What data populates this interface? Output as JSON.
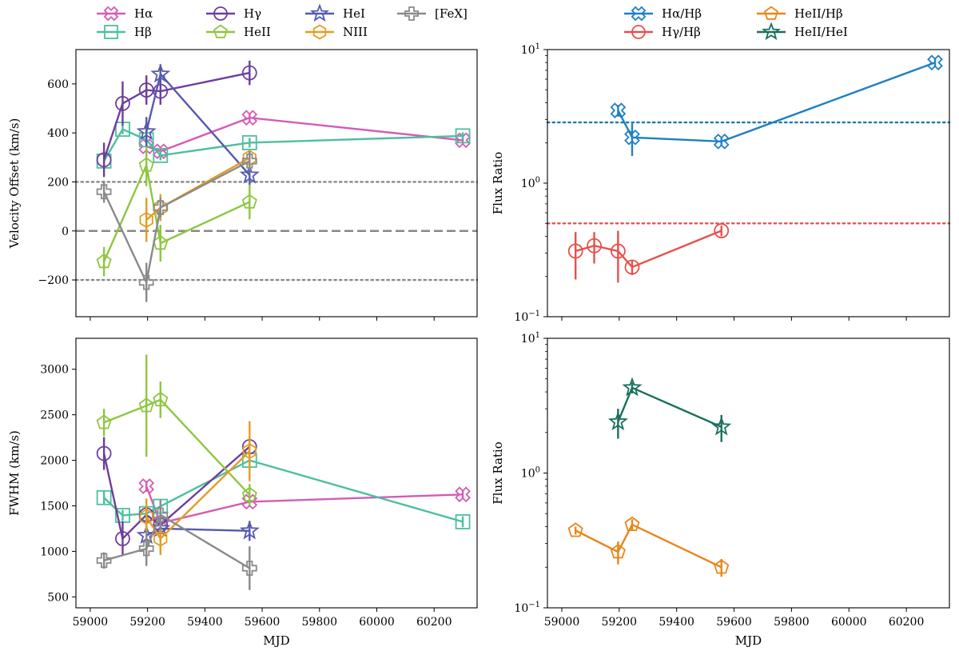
{
  "figure": {
    "x_label": "MJD"
  },
  "chart_data": [
    {
      "id": "velocity",
      "type": "line",
      "ylabel": "Velocity Offset (km/s)",
      "xlim": [
        58950,
        60350
      ],
      "ylim": [
        -350,
        740
      ],
      "yscale": "linear",
      "xticks": [
        59000,
        59200,
        59400,
        59600,
        59800,
        60000,
        60200
      ],
      "yticks": [
        -200,
        0,
        200,
        400,
        600
      ],
      "ytick_labels": [
        "−200",
        "0",
        "200",
        "400",
        "600"
      ],
      "hlines": [
        {
          "y": 200,
          "style": "dotted",
          "color": "#888888"
        },
        {
          "y": 0,
          "style": "dashed",
          "color": "#888888"
        },
        {
          "y": -200,
          "style": "dotted",
          "color": "#888888"
        }
      ],
      "legend": {
        "placement": "above",
        "columns": 4,
        "order": [
          "Hα",
          "Hβ",
          "Hγ",
          "HeII",
          "HeI",
          "NIII",
          "[FeX]"
        ]
      },
      "series": [
        {
          "name": "Hα",
          "color": "#d45bb8",
          "marker": "x-filled",
          "points": [
            [
              59196,
              345,
              20
            ],
            [
              59245,
              325,
              15
            ],
            [
              59556,
              462,
              20
            ],
            [
              60300,
              370,
              15
            ]
          ]
        },
        {
          "name": "Hβ",
          "color": "#4dbf9f",
          "marker": "square",
          "points": [
            [
              59048,
              285,
              25
            ],
            [
              59113,
              415,
              20
            ],
            [
              59196,
              372,
              20
            ],
            [
              59245,
              308,
              20
            ],
            [
              59556,
              360,
              20
            ],
            [
              60300,
              388,
              15
            ]
          ]
        },
        {
          "name": "Hγ",
          "color": "#6e3d9e",
          "marker": "circle",
          "points": [
            [
              59048,
              290,
              70
            ],
            [
              59113,
              520,
              90
            ],
            [
              59196,
              575,
              60
            ],
            [
              59245,
              570,
              55
            ],
            [
              59556,
              645,
              50
            ]
          ]
        },
        {
          "name": "HeII",
          "color": "#8ec641",
          "marker": "pentagon",
          "points": [
            [
              59048,
              -125,
              60
            ],
            [
              59196,
              268,
              85
            ],
            [
              59245,
              -50,
              75
            ],
            [
              59556,
              118,
              70
            ]
          ]
        },
        {
          "name": "HeI",
          "color": "#5559b0",
          "marker": "star",
          "points": [
            [
              59196,
              405,
              60
            ],
            [
              59245,
              640,
              40
            ],
            [
              59556,
              228,
              40
            ]
          ]
        },
        {
          "name": "NIII",
          "color": "#e69c1f",
          "marker": "hexagon",
          "points": [
            [
              59196,
              45,
              90
            ],
            [
              59245,
              95,
              55
            ],
            [
              59556,
              298,
              30
            ]
          ]
        },
        {
          "name": "[FeX]",
          "color": "#8a8a8a",
          "marker": "plus",
          "points": [
            [
              59048,
              160,
              45
            ],
            [
              59196,
              -210,
              80
            ],
            [
              59245,
              95,
              40
            ],
            [
              59556,
              285,
              40
            ]
          ]
        }
      ]
    },
    {
      "id": "fwhm",
      "type": "line",
      "ylabel": "FWHM (km/s)",
      "xlim": [
        58950,
        60350
      ],
      "ylim": [
        380,
        3340
      ],
      "yscale": "linear",
      "xticks": [
        59000,
        59200,
        59400,
        59600,
        59800,
        60000,
        60200
      ],
      "xtick_labels": [
        "59000",
        "59200",
        "59400",
        "59600",
        "59800",
        "60000",
        "60200"
      ],
      "yticks": [
        500,
        1000,
        1500,
        2000,
        2500,
        3000
      ],
      "ytick_labels": [
        "500",
        "1000",
        "1500",
        "2000",
        "2500",
        "3000"
      ],
      "series": [
        {
          "name": "Hα",
          "color": "#d45bb8",
          "marker": "x-filled",
          "points": [
            [
              59196,
              1715,
              60
            ],
            [
              59245,
              1310,
              60
            ],
            [
              59556,
              1545,
              60
            ],
            [
              60300,
              1625,
              50
            ]
          ]
        },
        {
          "name": "Hβ",
          "color": "#4dbf9f",
          "marker": "square",
          "points": [
            [
              59048,
              1590,
              80
            ],
            [
              59113,
              1395,
              60
            ],
            [
              59196,
              1415,
              60
            ],
            [
              59245,
              1495,
              60
            ],
            [
              59556,
              2000,
              120
            ],
            [
              60300,
              1325,
              60
            ]
          ]
        },
        {
          "name": "Hγ",
          "color": "#6e3d9e",
          "marker": "circle",
          "points": [
            [
              59048,
              2075,
              180
            ],
            [
              59113,
              1140,
              190
            ],
            [
              59196,
              1400,
              100
            ],
            [
              59245,
              1290,
              120
            ],
            [
              59556,
              2150,
              110
            ]
          ]
        },
        {
          "name": "HeII",
          "color": "#8ec641",
          "marker": "pentagon",
          "points": [
            [
              59048,
              2415,
              150
            ],
            [
              59196,
              2600,
              560
            ],
            [
              59245,
              2665,
              200
            ],
            [
              59556,
              1620,
              120
            ]
          ]
        },
        {
          "name": "HeI",
          "color": "#5559b0",
          "marker": "star",
          "points": [
            [
              59196,
              1175,
              150
            ],
            [
              59245,
              1250,
              150
            ],
            [
              59556,
              1225,
              110
            ]
          ]
        },
        {
          "name": "NIII",
          "color": "#e69c1f",
          "marker": "hexagon",
          "points": [
            [
              59196,
              1380,
              200
            ],
            [
              59245,
              1140,
              180
            ],
            [
              59556,
              2100,
              330
            ]
          ]
        },
        {
          "name": "[FeX]",
          "color": "#8a8a8a",
          "marker": "plus",
          "points": [
            [
              59048,
              900,
              90
            ],
            [
              59196,
              1030,
              190
            ],
            [
              59245,
              1400,
              170
            ],
            [
              59556,
              815,
              240
            ]
          ]
        }
      ]
    },
    {
      "id": "ratio_top",
      "type": "line",
      "ylabel": "Flux Ratio",
      "xlim": [
        58950,
        60350
      ],
      "ylim": [
        0.1,
        10
      ],
      "yscale": "log",
      "xticks": [
        59000,
        59200,
        59400,
        59600,
        59800,
        60000,
        60200
      ],
      "yticks": [
        0.1,
        1,
        10
      ],
      "ytick_labels": [
        [
          "10",
          "−1"
        ],
        [
          "10",
          "0"
        ],
        [
          "10",
          "1"
        ]
      ],
      "hlines": [
        {
          "y": 2.85,
          "style": "dotted",
          "color": "#1f77b4"
        },
        {
          "y": 0.5,
          "style": "dotted",
          "color": "#e8504a"
        }
      ],
      "legend": {
        "placement": "above",
        "columns": 2,
        "order": [
          "Hα/Hβ",
          "HeII/Hβ",
          "Hγ/Hβ",
          "HeII/HeI"
        ]
      },
      "series": [
        {
          "name": "Hα/Hβ",
          "color": "#1f80c2",
          "marker": "x-filled",
          "points": [
            [
              59196,
              3.5,
              0.35
            ],
            [
              59245,
              2.2,
              0.6
            ],
            [
              59556,
              2.05,
              0.12
            ],
            [
              60300,
              8.0,
              0.6
            ]
          ]
        },
        {
          "name": "Hγ/Hβ",
          "color": "#e8504a",
          "marker": "circle",
          "points": [
            [
              59048,
              0.31,
              0.12
            ],
            [
              59113,
              0.34,
              0.09
            ],
            [
              59196,
              0.31,
              0.13
            ],
            [
              59245,
              0.235,
              0.03
            ],
            [
              59556,
              0.44,
              0.04
            ]
          ]
        }
      ]
    },
    {
      "id": "ratio_bottom",
      "type": "line",
      "ylabel": "Flux Ratio",
      "xlim": [
        58950,
        60350
      ],
      "ylim": [
        0.1,
        10
      ],
      "yscale": "log",
      "xticks": [
        59000,
        59200,
        59400,
        59600,
        59800,
        60000,
        60200
      ],
      "xtick_labels": [
        "59000",
        "59200",
        "59400",
        "59600",
        "59800",
        "60000",
        "60200"
      ],
      "yticks": [
        0.1,
        1,
        10
      ],
      "ytick_labels": [
        [
          "10",
          "−1"
        ],
        [
          "10",
          "0"
        ],
        [
          "10",
          "1"
        ]
      ],
      "series": [
        {
          "name": "HeII/Hβ",
          "color": "#e8861a",
          "marker": "pentagon",
          "points": [
            [
              59048,
              0.375,
              0.025
            ],
            [
              59196,
              0.26,
              0.05
            ],
            [
              59245,
              0.415,
              0.04
            ],
            [
              59556,
              0.2,
              0.03
            ]
          ]
        },
        {
          "name": "HeII/HeI",
          "color": "#19705e",
          "marker": "star",
          "points": [
            [
              59196,
              2.4,
              0.6
            ],
            [
              59245,
              4.3,
              0.4
            ],
            [
              59556,
              2.2,
              0.5
            ]
          ]
        }
      ]
    }
  ]
}
